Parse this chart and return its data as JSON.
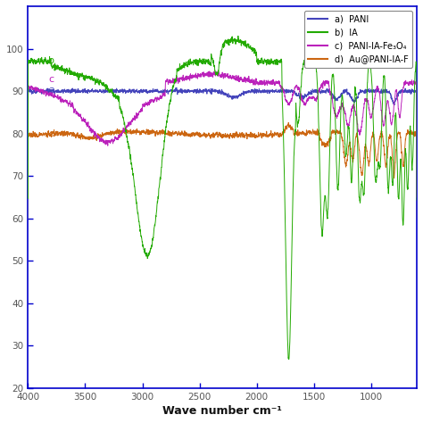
{
  "xlabel": "Wave number cm⁻¹",
  "xlim": [
    4000,
    600
  ],
  "ylim": [
    20,
    110
  ],
  "yticks": [
    20,
    30,
    40,
    50,
    60,
    70,
    80,
    90,
    100
  ],
  "xticks": [
    4000,
    3500,
    3000,
    2500,
    2000,
    1500,
    1000
  ],
  "legend": [
    {
      "label": "a)  PANI",
      "color": "#4444bb"
    },
    {
      "label": "b)  IA",
      "color": "#22aa00"
    },
    {
      "label": "c)  PANI-IA-Fe₃O₄",
      "color": "#bb22bb"
    },
    {
      "label": "d)  Au@PANI-IA-F",
      "color": "#cc6611"
    }
  ],
  "axis_color": "#0000cc",
  "tick_label_color": "#555555",
  "bg_color": "#ffffff",
  "label_color": "#111111"
}
